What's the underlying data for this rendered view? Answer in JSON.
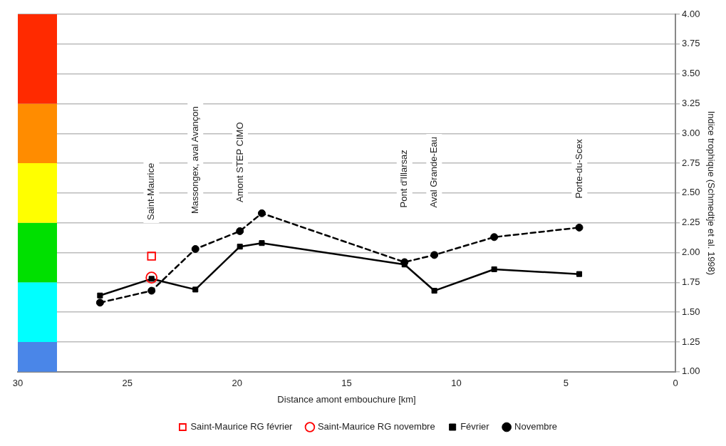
{
  "chart_data": {
    "type": "line",
    "xlabel": "Distance amont embouchure [km]",
    "ylabel": "Indice trophique (Schmedtje et al. 1998)",
    "xlim": [
      30,
      0
    ],
    "xticks": [
      30,
      25,
      20,
      15,
      10,
      5,
      0
    ],
    "ylim": [
      1,
      4
    ],
    "yticks": [
      {
        "value": 1,
        "label": "1.00"
      },
      {
        "value": 1.25,
        "label": "1.25"
      },
      {
        "value": 1.5,
        "label": "1.50"
      },
      {
        "value": 1.75,
        "label": "1.75"
      },
      {
        "value": 2,
        "label": "2.00"
      },
      {
        "value": 2.25,
        "label": "2.25"
      },
      {
        "value": 2.5,
        "label": "2.50"
      },
      {
        "value": 2.75,
        "label": "2.75"
      },
      {
        "value": 3,
        "label": "3.00"
      },
      {
        "value": 3.25,
        "label": "3.25"
      },
      {
        "value": 3.5,
        "label": "3.50"
      },
      {
        "value": 3.75,
        "label": "3.75"
      },
      {
        "value": 4,
        "label": "4.00"
      }
    ],
    "grid": "y",
    "legend": "bottom",
    "bands": [
      {
        "axis": "y",
        "from": 1,
        "to": 1.25,
        "color": "#4a86e8"
      },
      {
        "axis": "y",
        "from": 1.25,
        "to": 1.75,
        "color": "#00ffff"
      },
      {
        "axis": "y",
        "from": 1.75,
        "to": 2.25,
        "color": "#00e000"
      },
      {
        "axis": "y",
        "from": 2.25,
        "to": 2.75,
        "color": "#ffff00"
      },
      {
        "axis": "y",
        "from": 2.75,
        "to": 3.25,
        "color": "#ff8c00"
      },
      {
        "axis": "y",
        "from": 3.25,
        "to": 4,
        "color": "#ff2a00"
      }
    ],
    "annotations": [
      "Saint-Maurice",
      "Massongex, aval Avançon",
      "Amont STEP CIMO",
      "Pont d'Illarsaz",
      "Aval Grande-Eau",
      "Porte-du-Scex"
    ],
    "series": [
      {
        "name": "Février",
        "type": "line",
        "color": "#000000",
        "marker": "square",
        "line_style": "solid",
        "x": [
          26.25,
          23.9,
          21.9,
          19.87,
          18.87,
          12.36,
          11.0,
          8.27,
          4.39
        ],
        "values": [
          1.64,
          1.78,
          1.69,
          2.05,
          2.08,
          1.9,
          1.68,
          1.86,
          1.82
        ]
      },
      {
        "name": "Saint-Maurice RG février",
        "type": "scatter",
        "color": "#ff0000",
        "marker": "square",
        "x": [
          23.9
        ],
        "values": [
          1.97
        ]
      },
      {
        "name": "Novembre",
        "type": "line",
        "color": "#000000",
        "marker": "circle",
        "line_style": "dashed",
        "x": [
          26.25,
          23.9,
          21.9,
          19.87,
          18.87,
          12.36,
          11.0,
          8.27,
          4.39
        ],
        "values": [
          1.58,
          1.68,
          2.03,
          2.18,
          2.33,
          1.92,
          1.98,
          2.13,
          2.21
        ]
      },
      {
        "name": "Saint-Maurice RG novembre",
        "type": "scatter",
        "color": "#ff0000",
        "marker": "circle",
        "x": [
          23.9
        ],
        "values": [
          1.79
        ]
      }
    ]
  }
}
